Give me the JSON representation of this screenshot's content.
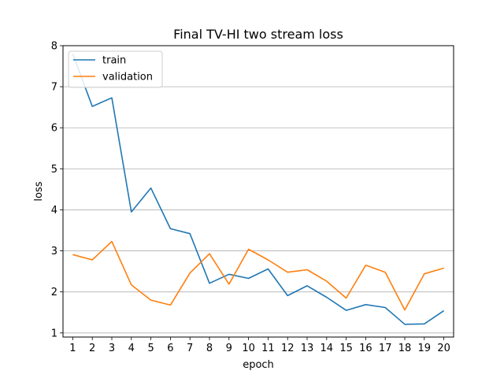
{
  "chart_data": {
    "type": "line",
    "title": "Final TV-HI two stream loss",
    "xlabel": "epoch",
    "ylabel": "loss",
    "x": [
      1,
      2,
      3,
      4,
      5,
      6,
      7,
      8,
      9,
      10,
      11,
      12,
      13,
      14,
      15,
      16,
      17,
      18,
      19,
      20
    ],
    "xlim": [
      0.5,
      20.5
    ],
    "ylim": [
      0.9,
      8
    ],
    "yticks": [
      1,
      2,
      3,
      4,
      5,
      6,
      7,
      8
    ],
    "grid": "y",
    "legend_position": "top-left",
    "series": [
      {
        "name": "train",
        "color": "#1f77b4",
        "values": [
          7.8,
          6.52,
          6.73,
          3.95,
          4.53,
          3.54,
          3.42,
          2.21,
          2.43,
          2.33,
          2.56,
          1.91,
          2.15,
          1.87,
          1.55,
          1.69,
          1.62,
          1.21,
          1.22,
          1.54
        ]
      },
      {
        "name": "validation",
        "color": "#ff7f0e",
        "values": [
          2.91,
          2.78,
          3.23,
          2.17,
          1.8,
          1.68,
          2.46,
          2.93,
          2.19,
          3.04,
          2.78,
          2.48,
          2.54,
          2.26,
          1.85,
          2.65,
          2.48,
          1.56,
          2.44,
          2.58
        ]
      }
    ]
  }
}
